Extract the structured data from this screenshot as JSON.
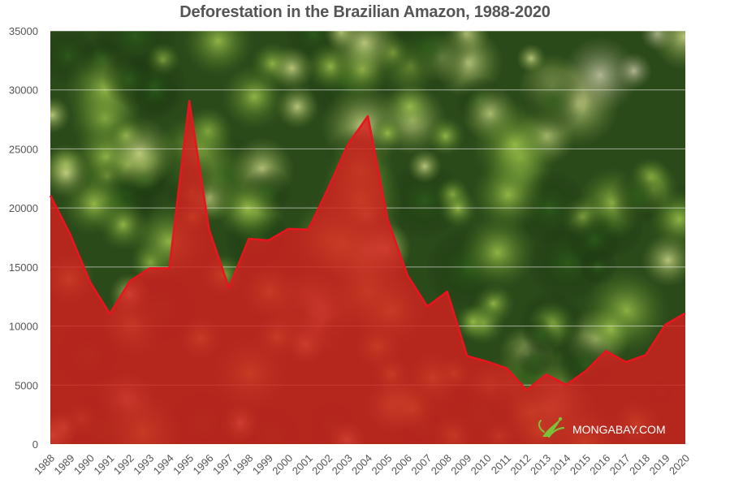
{
  "chart_data": {
    "type": "area",
    "title": "Deforestation in the Brazilian Amazon, 1988-2020",
    "xlabel": "",
    "ylabel": "",
    "ylim": [
      0,
      35000
    ],
    "yticks": [
      0,
      5000,
      10000,
      15000,
      20000,
      25000,
      30000,
      35000
    ],
    "grid": true,
    "legend": "none",
    "series": [
      {
        "x": [
          1988,
          1989,
          1990,
          1991,
          1992,
          1993,
          1994,
          1995,
          1996,
          1997,
          1998,
          1999,
          2000,
          2001,
          2002,
          2003,
          2004,
          2005,
          2006,
          2007,
          2008,
          2009,
          2010,
          2011,
          2012,
          2013,
          2014,
          2015,
          2016,
          2017,
          2018,
          2019,
          2020
        ],
        "values": [
          21050,
          17770,
          13730,
          11030,
          13786,
          14896,
          14896,
          29059,
          18161,
          13227,
          17383,
          17259,
          18226,
          18165,
          21651,
          25396,
          27772,
          19014,
          14286,
          11651,
          12911,
          7464,
          7000,
          6418,
          4571,
          5891,
          5012,
          6207,
          7893,
          6947,
          7536,
          10129,
          11088
        ]
      }
    ],
    "colors": {
      "line": "#e8141e",
      "fill": "#d4201e",
      "forest_dark": "#1f3d14",
      "forest_light": "#9bb55a"
    },
    "credit_text": "MONGABAY.COM",
    "logo_icon": "frog-icon"
  }
}
